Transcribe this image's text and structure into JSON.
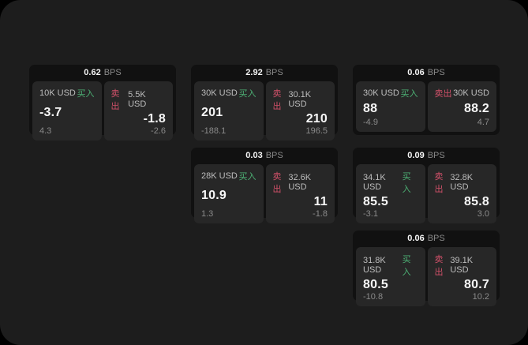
{
  "labels": {
    "bps_unit": "BPS",
    "buy": "买入",
    "sell": "卖出"
  },
  "colors": {
    "buy_green": "#4cb074",
    "sell_red": "#cf5068",
    "screen_bg": "#1d1d1d",
    "card_bg": "#111111",
    "panel_bg": "#272727",
    "outer_bg": "#000000"
  },
  "cards": [
    {
      "bps": "0.62",
      "buy": {
        "amount": "10K USD",
        "price": "-3.7",
        "delta": "4.3"
      },
      "sell": {
        "amount": "5.5K USD",
        "price": "-1.8",
        "delta": "-2.6"
      }
    },
    {
      "bps": "2.92",
      "buy": {
        "amount": "30K USD",
        "price": "201",
        "delta": "-188.1"
      },
      "sell": {
        "amount": "30.1K USD",
        "price": "210",
        "delta": "196.5"
      }
    },
    {
      "bps": "0.06",
      "buy": {
        "amount": "30K USD",
        "price": "88",
        "delta": "-4.9"
      },
      "sell": {
        "amount": "30K USD",
        "price": "88.2",
        "delta": "4.7"
      }
    },
    {
      "bps": "0.03",
      "buy": {
        "amount": "28K USD",
        "price": "10.9",
        "delta": "1.3"
      },
      "sell": {
        "amount": "32.6K USD",
        "price": "11",
        "delta": "-1.8"
      }
    },
    {
      "bps": "0.09",
      "buy": {
        "amount": "34.1K USD",
        "price": "85.5",
        "delta": "-3.1"
      },
      "sell": {
        "amount": "32.8K USD",
        "price": "85.8",
        "delta": "3.0"
      }
    },
    {
      "bps": "0.06",
      "buy": {
        "amount": "31.8K USD",
        "price": "80.5",
        "delta": "-10.8"
      },
      "sell": {
        "amount": "39.1K USD",
        "price": "80.7",
        "delta": "10.2"
      }
    }
  ]
}
